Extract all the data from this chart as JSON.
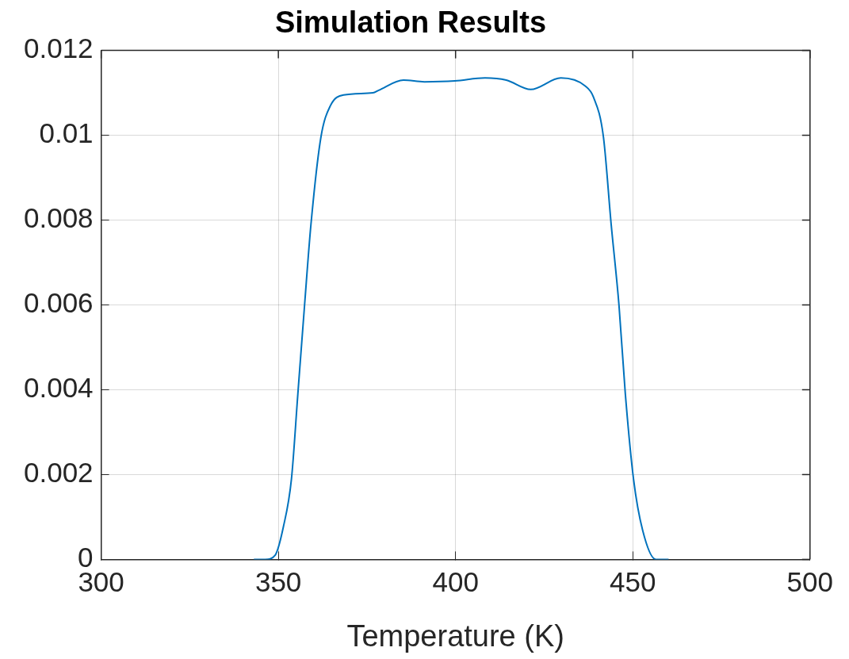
{
  "chart_data": {
    "type": "line",
    "title": "Simulation Results",
    "xlabel": "Temperature (K)",
    "series": [
      {
        "color": "#0072bd",
        "x": [
          343.1,
          346.3,
          349.1,
          351.4,
          353.7,
          355.5,
          357.4,
          359.2,
          362.0,
          364.7,
          368.4,
          376.7,
          378.3,
          385.3,
          391.2,
          399.8,
          408.3,
          414.3,
          421.2,
          429.7,
          436.6,
          438.9,
          441.7,
          443.9,
          446.1,
          447.9,
          450.2,
          452.8,
          456.5,
          460.1
        ],
        "values": [
          0,
          0,
          0.0001,
          0.00076,
          0.0019,
          0.0039,
          0.006,
          0.0079,
          0.00995,
          0.0107,
          0.01095,
          0.011,
          0.01106,
          0.0113,
          0.01126,
          0.01128,
          0.01135,
          0.0113,
          0.01108,
          0.01135,
          0.01116,
          0.0109,
          0.00997,
          0.0079,
          0.006,
          0.0039,
          0.0019,
          0.00068,
          0,
          0
        ]
      }
    ],
    "xlim": [
      300,
      500
    ],
    "xticks": [
      300,
      350,
      400,
      450,
      500
    ],
    "ylim": [
      0,
      0.012
    ],
    "yticks": [
      0,
      0.002,
      0.004,
      0.006,
      0.008,
      0.01,
      0.012
    ],
    "grid": true,
    "marker": "none",
    "line_style": "solid"
  }
}
